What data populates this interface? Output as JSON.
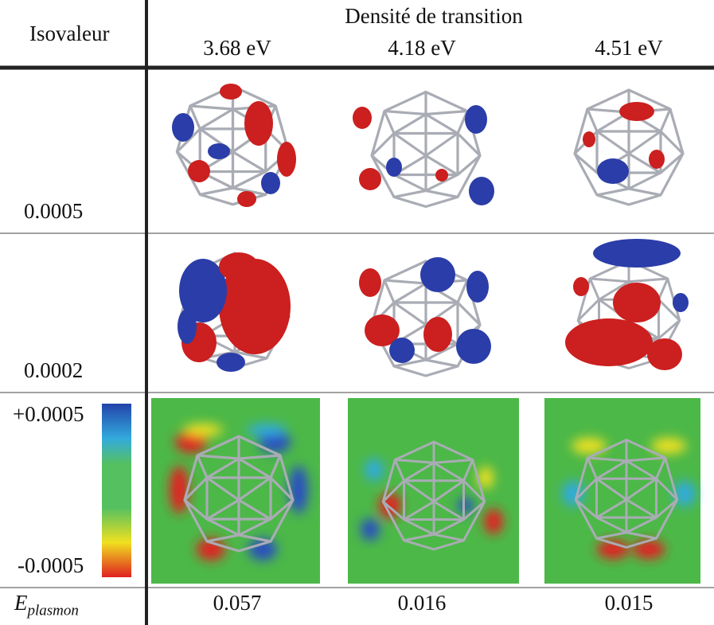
{
  "table": {
    "corner": "Isovaleur",
    "group_header": "Densité de transition",
    "columns": [
      "3.68 eV",
      "4.18 eV",
      "4.51 eV"
    ],
    "isovalue_rows": [
      "0.0005",
      "0.0002"
    ],
    "colorbar": {
      "max": "+0.0005",
      "min": "-0.0005"
    },
    "plasmon_row": {
      "label": "E",
      "subscript": "plasmon",
      "values": [
        "0.057",
        "0.016",
        "0.015"
      ]
    }
  }
}
